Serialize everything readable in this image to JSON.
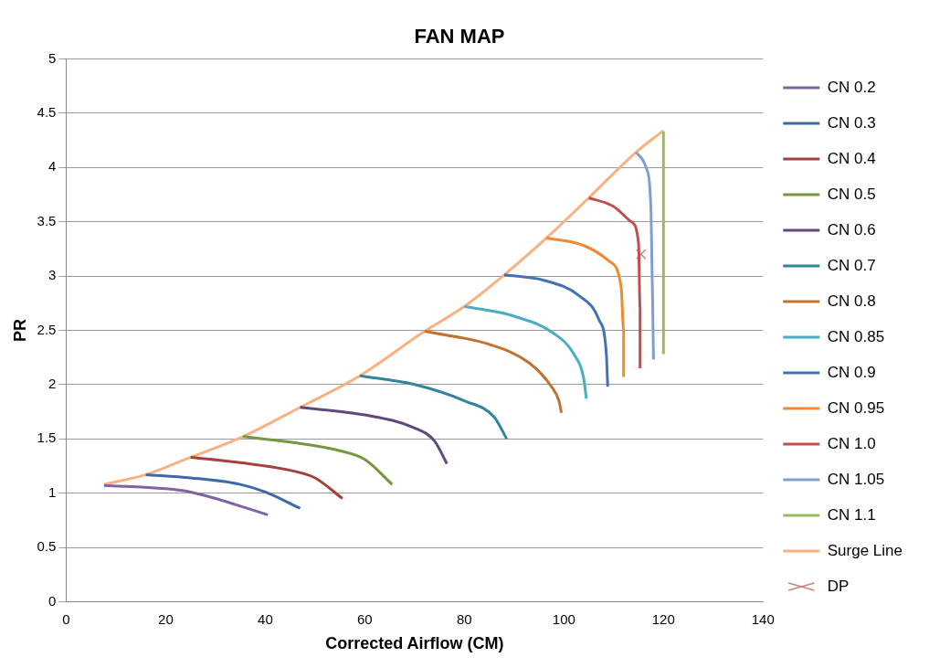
{
  "chart_data": {
    "type": "line",
    "title": "FAN MAP",
    "xlabel": "Corrected Airflow (CM)",
    "ylabel": "PR",
    "xlim": [
      0,
      140
    ],
    "xticks": [
      0,
      20,
      40,
      60,
      80,
      100,
      120,
      140
    ],
    "ylim": [
      0,
      5
    ],
    "yticks": [
      0,
      0.5,
      1,
      1.5,
      2,
      2.5,
      3,
      3.5,
      4,
      4.5,
      5
    ],
    "grid": "y",
    "legend": "right",
    "marker": "none",
    "series": [
      {
        "name": "CN 0.2",
        "color": "#8064a2",
        "x": [
          7.6,
          20,
          25,
          30,
          35,
          40.5
        ],
        "values": [
          1.07,
          1.04,
          1.01,
          0.95,
          0.88,
          0.8
        ]
      },
      {
        "name": "CN 0.3",
        "color": "#3c6aa8",
        "x": [
          16,
          25,
          35,
          40,
          47
        ],
        "values": [
          1.17,
          1.14,
          1.08,
          1.01,
          0.86
        ]
      },
      {
        "name": "CN 0.4",
        "color": "#a5403d",
        "x": [
          25,
          35,
          45,
          50,
          55.5
        ],
        "values": [
          1.33,
          1.28,
          1.21,
          1.14,
          0.95
        ]
      },
      {
        "name": "CN 0.5",
        "color": "#78953f",
        "x": [
          35.5,
          45,
          55,
          60,
          65.5
        ],
        "values": [
          1.52,
          1.47,
          1.39,
          1.31,
          1.08
        ]
      },
      {
        "name": "CN 0.6",
        "color": "#604a7b",
        "x": [
          47,
          60,
          70,
          74,
          76.5
        ],
        "values": [
          1.79,
          1.72,
          1.6,
          1.48,
          1.27
        ]
      },
      {
        "name": "CN 0.7",
        "color": "#31859c",
        "x": [
          59,
          70,
          80,
          86,
          88.5
        ],
        "values": [
          2.08,
          2,
          1.85,
          1.7,
          1.5
        ]
      },
      {
        "name": "CN 0.8",
        "color": "#c0722f",
        "x": [
          72,
          85,
          93,
          97.5,
          99,
          99.5
        ],
        "values": [
          2.49,
          2.37,
          2.2,
          1.98,
          1.85,
          1.74
        ]
      },
      {
        "name": "CN 0.85",
        "color": "#4bacc6",
        "x": [
          80,
          90,
          98,
          102,
          104,
          104.5
        ],
        "values": [
          2.72,
          2.63,
          2.47,
          2.28,
          2.05,
          1.87
        ]
      },
      {
        "name": "CN 0.9",
        "color": "#4572b4",
        "x": [
          88,
          96,
          103,
          107,
          108.5,
          108.8
        ],
        "values": [
          3.01,
          2.96,
          2.82,
          2.6,
          2.3,
          1.98
        ]
      },
      {
        "name": "CN 0.95",
        "color": "#f08a30",
        "x": [
          96.5,
          104,
          109,
          111.5,
          112,
          112
        ],
        "values": [
          3.35,
          3.28,
          3.14,
          2.9,
          2.5,
          2.07
        ]
      },
      {
        "name": "CN 1.0",
        "color": "#c0504d",
        "x": [
          105,
          110,
          113.5,
          115,
          115.3,
          115.3
        ],
        "values": [
          3.72,
          3.64,
          3.5,
          3.3,
          2.7,
          2.15
        ]
      },
      {
        "name": "CN 1.05",
        "color": "#7f9fd0",
        "x": [
          114.5,
          116.5,
          117.5,
          118
        ],
        "values": [
          4.14,
          4,
          3.6,
          2.23
        ]
      },
      {
        "name": "CN 1.1",
        "color": "#9bbb59",
        "x": [
          120,
          120
        ],
        "values": [
          4.33,
          2.28
        ]
      },
      {
        "name": "Surge Line",
        "color": "#fab080",
        "x": [
          7.6,
          16,
          25,
          35.5,
          47,
          59,
          72,
          80,
          88,
          96.5,
          105,
          114.5,
          120
        ],
        "values": [
          1.08,
          1.17,
          1.33,
          1.52,
          1.79,
          2.08,
          2.49,
          2.72,
          3.01,
          3.35,
          3.72,
          4.14,
          4.34
        ]
      },
      {
        "name": "DP",
        "type": "scatter",
        "marker": "cross",
        "color": "#d08080",
        "x": [
          115.5
        ],
        "values": [
          3.2
        ]
      }
    ]
  }
}
